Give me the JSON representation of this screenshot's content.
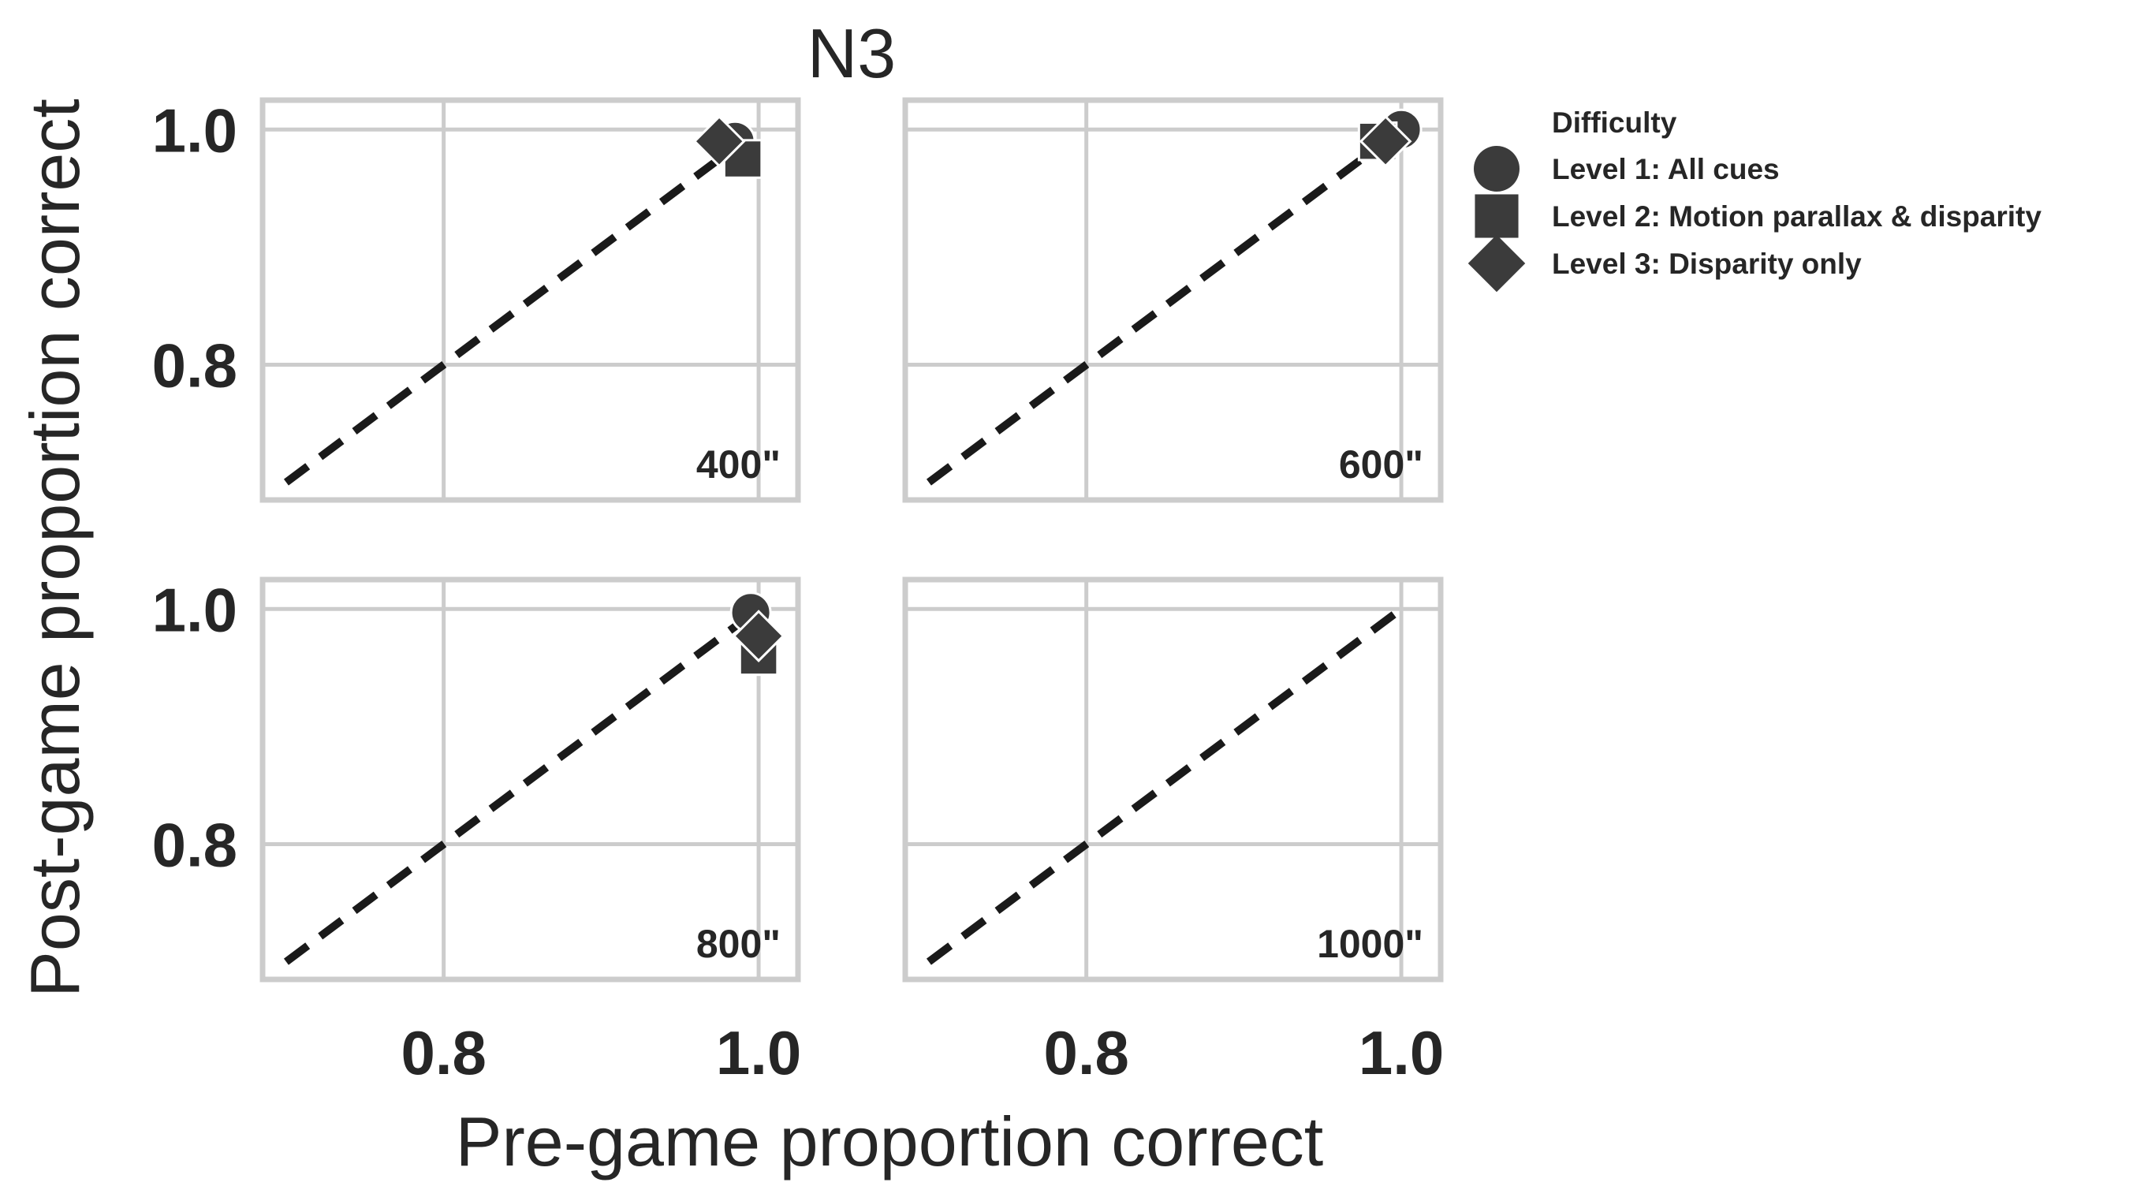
{
  "chart_data": {
    "type": "scatter",
    "title": "N3",
    "xlabel": "Pre-game proportion correct",
    "ylabel": "Post-game proportion correct",
    "xlim": [
      0.685,
      1.025
    ],
    "ylim": [
      0.685,
      1.025
    ],
    "xticks": [
      0.8,
      1.0
    ],
    "yticks": [
      0.8,
      1.0
    ],
    "x_tick_labels": [
      "0.8",
      "1.0"
    ],
    "y_tick_labels": [
      "0.8",
      "1.0"
    ],
    "grid": true,
    "reference_line": {
      "style": "dashed",
      "from": [
        0.7,
        0.7
      ],
      "to": [
        1.0,
        1.0
      ],
      "color": "#1a1a1a"
    },
    "legend": {
      "title": "Difficulty",
      "position": "right",
      "entries": [
        {
          "label": "Level 1: All cues",
          "marker": "circle"
        },
        {
          "label": "Level 2: Motion parallax & disparity",
          "marker": "square"
        },
        {
          "label": "Level 3: Disparity only",
          "marker": "diamond"
        }
      ]
    },
    "marker_color": "#3b3b3b",
    "panels": [
      {
        "label": "400\"",
        "points": [
          {
            "series": "Level 1: All cues",
            "x": 0.985,
            "y": 0.99
          },
          {
            "series": "Level 2: Motion parallax & disparity",
            "x": 0.99,
            "y": 0.975
          },
          {
            "series": "Level 3: Disparity only",
            "x": 0.975,
            "y": 0.99
          }
        ]
      },
      {
        "label": "600\"",
        "points": [
          {
            "series": "Level 1: All cues",
            "x": 1.0,
            "y": 1.0
          },
          {
            "series": "Level 2: Motion parallax & disparity",
            "x": 0.985,
            "y": 0.99
          },
          {
            "series": "Level 3: Disparity only",
            "x": 0.99,
            "y": 0.99
          }
        ]
      },
      {
        "label": "800\"",
        "points": [
          {
            "series": "Level 1: All cues",
            "x": 0.995,
            "y": 0.997
          },
          {
            "series": "Level 2: Motion parallax & disparity",
            "x": 1.0,
            "y": 0.96
          },
          {
            "series": "Level 3: Disparity only",
            "x": 1.0,
            "y": 0.977
          }
        ]
      },
      {
        "label": "1000\"",
        "points": []
      }
    ]
  }
}
